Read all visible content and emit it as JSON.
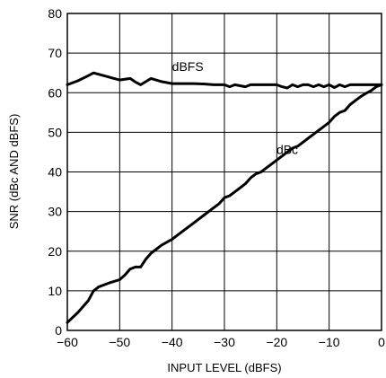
{
  "chart_data": {
    "type": "line",
    "title": "",
    "xlabel": "INPUT LEVEL (dBFS)",
    "ylabel": "SNR (dBc AND dBFS)",
    "xlim": [
      -60,
      0
    ],
    "ylim": [
      0,
      80
    ],
    "xticks": [
      -60,
      -50,
      -40,
      -30,
      -20,
      -10,
      0
    ],
    "xtick_labels": [
      "−60",
      "−50",
      "−40",
      "−30",
      "−20",
      "−10",
      "0"
    ],
    "yticks": [
      0,
      10,
      20,
      30,
      40,
      50,
      60,
      70,
      80
    ],
    "ytick_labels": [
      "0",
      "10",
      "20",
      "30",
      "40",
      "50",
      "60",
      "70",
      "80"
    ],
    "grid": true,
    "legend": "none",
    "series": [
      {
        "name": "dBFS",
        "label_at": [
          -37,
          65.5
        ],
        "x": [
          -60,
          -58,
          -56,
          -55,
          -53,
          -50,
          -48,
          -47,
          -46,
          -44,
          -42,
          -40,
          -38,
          -36,
          -34,
          -32,
          -30,
          -29,
          -28,
          -26,
          -25,
          -24,
          -22,
          -20,
          -19,
          -18,
          -17,
          -16,
          -15,
          -14,
          -13,
          -12,
          -11,
          -10,
          -9,
          -8,
          -7,
          -6,
          -5,
          -4,
          -3,
          -2,
          -1,
          0
        ],
        "y": [
          62,
          63,
          64.3,
          65,
          64.3,
          63.2,
          63.6,
          62.7,
          62,
          63.6,
          62.8,
          62.3,
          62.3,
          62.3,
          62.2,
          62,
          62,
          61.5,
          62,
          61.5,
          62,
          62,
          62,
          62,
          61.5,
          61.2,
          62,
          61.5,
          62,
          62,
          61.5,
          62,
          61.5,
          62,
          61.3,
          62,
          61.5,
          62,
          62,
          62,
          62,
          62,
          62,
          62
        ]
      },
      {
        "name": "dBc",
        "label_at": [
          -18,
          44.5
        ],
        "x": [
          -60,
          -58,
          -56,
          -55,
          -54,
          -52,
          -50,
          -49,
          -48,
          -47,
          -46,
          -45,
          -44,
          -43,
          -42,
          -40,
          -39,
          -38,
          -36,
          -34,
          -32,
          -31,
          -30,
          -29,
          -28,
          -27,
          -26,
          -25,
          -24,
          -23,
          -22,
          -20,
          -19,
          -18,
          -17,
          -16,
          -15,
          -14,
          -13,
          -12,
          -11,
          -10,
          -9,
          -8,
          -7,
          -6,
          -5,
          -4,
          -3,
          -2,
          -1,
          0
        ],
        "y": [
          2,
          4.5,
          7.5,
          10,
          11,
          12,
          12.8,
          14,
          15.5,
          16,
          16,
          18,
          19.5,
          20.5,
          21.5,
          23,
          24,
          25,
          27,
          29,
          31,
          32,
          33.5,
          34,
          35,
          36,
          37,
          38.5,
          39.5,
          40,
          41,
          43,
          44,
          45,
          46,
          46.5,
          47.5,
          48.5,
          49.5,
          50.5,
          51.5,
          52.5,
          54,
          55,
          55.5,
          57,
          58,
          59,
          59.8,
          60.5,
          61.5,
          62
        ]
      }
    ]
  }
}
